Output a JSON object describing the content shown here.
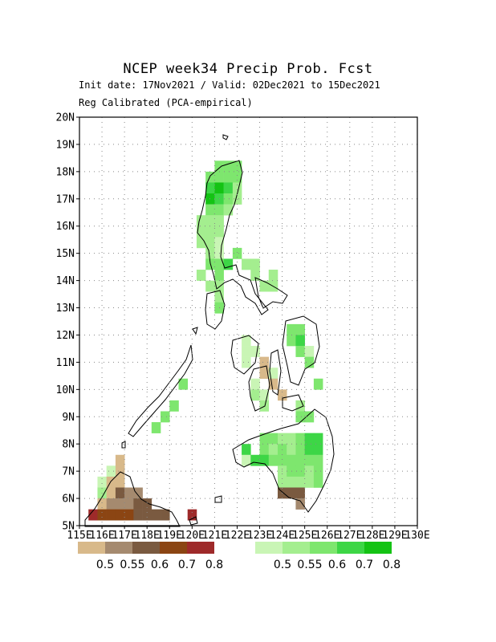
{
  "header": {
    "title": "NCEP  week34  Precip  Prob.  Fcst",
    "subtitle_line1": "Init date: 17Nov2021 / Valid: 02Dec2021 to 15Dec2021",
    "subtitle_line2": "Reg Calibrated (PCA-empirical)"
  },
  "axes": {
    "lat_labels": [
      "5N",
      "6N",
      "7N",
      "8N",
      "9N",
      "10N",
      "11N",
      "12N",
      "13N",
      "14N",
      "15N",
      "16N",
      "17N",
      "18N",
      "19N",
      "20N"
    ],
    "lon_labels": [
      "115E",
      "116E",
      "117E",
      "118E",
      "119E",
      "120E",
      "121E",
      "122E",
      "123E",
      "124E",
      "125E",
      "126E",
      "127E",
      "128E",
      "129E",
      "130E"
    ],
    "lat_range": [
      5,
      20
    ],
    "lon_range": [
      115,
      130
    ],
    "grid": "dotted"
  },
  "legend": {
    "dry": {
      "labels": [
        "0.5",
        "0.55",
        "0.6",
        "0.7",
        "0.8"
      ],
      "colors": [
        "#d8b98a",
        "#a58a6f",
        "#7a5a40",
        "#8b4513",
        "#9e2a2a"
      ]
    },
    "wet": {
      "labels": [
        "0.5",
        "0.55",
        "0.6",
        "0.7",
        "0.8"
      ],
      "colors": [
        "#c9f5b5",
        "#a4ee8f",
        "#7ee66e",
        "#3dd646",
        "#14c314"
      ]
    }
  },
  "chart_data": {
    "type": "heatmap",
    "title": "NCEP  week34  Precip  Prob.  Fcst",
    "cell_size_deg": 0.4,
    "lat_range": [
      5,
      20
    ],
    "lon_range": [
      115,
      130
    ],
    "note_categories": "g1-g5 above-normal probability levels 0.5,0.55,0.6,0.7,0.8; b1-b5 below-normal",
    "cells": [
      {
        "lon": 121.0,
        "lat": 18.0,
        "cat": "g3"
      },
      {
        "lon": 121.4,
        "lat": 18.0,
        "cat": "g3"
      },
      {
        "lon": 121.8,
        "lat": 18.0,
        "cat": "g3"
      },
      {
        "lon": 120.6,
        "lat": 17.6,
        "cat": "g3"
      },
      {
        "lon": 121.0,
        "lat": 17.6,
        "cat": "g3"
      },
      {
        "lon": 121.4,
        "lat": 17.6,
        "cat": "g3"
      },
      {
        "lon": 121.8,
        "lat": 17.6,
        "cat": "g3"
      },
      {
        "lon": 120.6,
        "lat": 17.2,
        "cat": "g4"
      },
      {
        "lon": 121.0,
        "lat": 17.2,
        "cat": "g5"
      },
      {
        "lon": 121.4,
        "lat": 17.2,
        "cat": "g4"
      },
      {
        "lon": 121.8,
        "lat": 17.2,
        "cat": "g2"
      },
      {
        "lon": 120.6,
        "lat": 16.8,
        "cat": "g5"
      },
      {
        "lon": 121.0,
        "lat": 16.8,
        "cat": "g4"
      },
      {
        "lon": 121.4,
        "lat": 16.8,
        "cat": "g3"
      },
      {
        "lon": 121.8,
        "lat": 16.8,
        "cat": "g2"
      },
      {
        "lon": 120.6,
        "lat": 16.4,
        "cat": "g3"
      },
      {
        "lon": 121.0,
        "lat": 16.4,
        "cat": "g3"
      },
      {
        "lon": 121.4,
        "lat": 16.4,
        "cat": "g2"
      },
      {
        "lon": 120.2,
        "lat": 16.0,
        "cat": "g2"
      },
      {
        "lon": 120.6,
        "lat": 16.0,
        "cat": "g2"
      },
      {
        "lon": 121.0,
        "lat": 16.0,
        "cat": "g2"
      },
      {
        "lon": 120.2,
        "lat": 15.6,
        "cat": "g2"
      },
      {
        "lon": 120.6,
        "lat": 15.6,
        "cat": "g2"
      },
      {
        "lon": 121.0,
        "lat": 15.6,
        "cat": "g2"
      },
      {
        "lon": 120.2,
        "lat": 15.2,
        "cat": "g2"
      },
      {
        "lon": 120.6,
        "lat": 15.2,
        "cat": "g2"
      },
      {
        "lon": 121.0,
        "lat": 15.2,
        "cat": "g1"
      },
      {
        "lon": 120.6,
        "lat": 14.8,
        "cat": "g2"
      },
      {
        "lon": 121.0,
        "lat": 14.8,
        "cat": "g1"
      },
      {
        "lon": 121.8,
        "lat": 14.8,
        "cat": "g3"
      },
      {
        "lon": 120.6,
        "lat": 14.4,
        "cat": "g3"
      },
      {
        "lon": 121.0,
        "lat": 14.4,
        "cat": "g3"
      },
      {
        "lon": 121.4,
        "lat": 14.4,
        "cat": "g4"
      },
      {
        "lon": 122.2,
        "lat": 14.4,
        "cat": "g2"
      },
      {
        "lon": 122.6,
        "lat": 14.4,
        "cat": "g2"
      },
      {
        "lon": 120.2,
        "lat": 14.0,
        "cat": "g2"
      },
      {
        "lon": 121.0,
        "lat": 14.0,
        "cat": "g3"
      },
      {
        "lon": 122.6,
        "lat": 14.0,
        "cat": "g2"
      },
      {
        "lon": 123.4,
        "lat": 14.0,
        "cat": "g2"
      },
      {
        "lon": 120.6,
        "lat": 13.6,
        "cat": "g2"
      },
      {
        "lon": 121.0,
        "lat": 13.6,
        "cat": "g2"
      },
      {
        "lon": 123.0,
        "lat": 13.6,
        "cat": "g2"
      },
      {
        "lon": 123.4,
        "lat": 13.6,
        "cat": "g2"
      },
      {
        "lon": 121.0,
        "lat": 13.2,
        "cat": "g2"
      },
      {
        "lon": 121.0,
        "lat": 12.8,
        "cat": "g3"
      },
      {
        "lon": 124.2,
        "lat": 12.0,
        "cat": "g3"
      },
      {
        "lon": 124.6,
        "lat": 12.0,
        "cat": "g3"
      },
      {
        "lon": 124.2,
        "lat": 11.6,
        "cat": "g3"
      },
      {
        "lon": 124.6,
        "lat": 11.6,
        "cat": "g4"
      },
      {
        "lon": 122.2,
        "lat": 11.6,
        "cat": "g1"
      },
      {
        "lon": 122.2,
        "lat": 11.2,
        "cat": "g1"
      },
      {
        "lon": 122.6,
        "lat": 11.2,
        "cat": "g1"
      },
      {
        "lon": 124.6,
        "lat": 11.2,
        "cat": "g3"
      },
      {
        "lon": 125.0,
        "lat": 11.2,
        "cat": "g1"
      },
      {
        "lon": 122.2,
        "lat": 10.8,
        "cat": "g1"
      },
      {
        "lon": 123.0,
        "lat": 10.8,
        "cat": "b1"
      },
      {
        "lon": 125.0,
        "lat": 10.8,
        "cat": "g3"
      },
      {
        "lon": 123.0,
        "lat": 10.4,
        "cat": "b1"
      },
      {
        "lon": 123.4,
        "lat": 10.4,
        "cat": "g1"
      },
      {
        "lon": 123.4,
        "lat": 10.0,
        "cat": "b1"
      },
      {
        "lon": 122.6,
        "lat": 10.0,
        "cat": "g1"
      },
      {
        "lon": 122.6,
        "lat": 9.6,
        "cat": "g2"
      },
      {
        "lon": 123.0,
        "lat": 9.6,
        "cat": "g1"
      },
      {
        "lon": 123.8,
        "lat": 9.6,
        "cat": "b1"
      },
      {
        "lon": 125.4,
        "lat": 10.0,
        "cat": "g3"
      },
      {
        "lon": 123.0,
        "lat": 9.2,
        "cat": "g2"
      },
      {
        "lon": 124.6,
        "lat": 9.2,
        "cat": "g2"
      },
      {
        "lon": 124.6,
        "lat": 8.8,
        "cat": "g3"
      },
      {
        "lon": 125.0,
        "lat": 8.8,
        "cat": "g3"
      },
      {
        "lon": 123.0,
        "lat": 8.0,
        "cat": "g3"
      },
      {
        "lon": 123.4,
        "lat": 8.0,
        "cat": "g3"
      },
      {
        "lon": 123.8,
        "lat": 8.0,
        "cat": "g2"
      },
      {
        "lon": 124.2,
        "lat": 8.0,
        "cat": "g2"
      },
      {
        "lon": 124.6,
        "lat": 8.0,
        "cat": "g3"
      },
      {
        "lon": 125.0,
        "lat": 8.0,
        "cat": "g4"
      },
      {
        "lon": 125.4,
        "lat": 8.0,
        "cat": "g4"
      },
      {
        "lon": 122.2,
        "lat": 7.6,
        "cat": "g4"
      },
      {
        "lon": 123.0,
        "lat": 7.6,
        "cat": "g3"
      },
      {
        "lon": 123.4,
        "lat": 7.6,
        "cat": "g2"
      },
      {
        "lon": 123.8,
        "lat": 7.6,
        "cat": "g3"
      },
      {
        "lon": 124.2,
        "lat": 7.6,
        "cat": "g2"
      },
      {
        "lon": 124.6,
        "lat": 7.6,
        "cat": "g3"
      },
      {
        "lon": 125.0,
        "lat": 7.6,
        "cat": "g4"
      },
      {
        "lon": 125.4,
        "lat": 7.6,
        "cat": "g4"
      },
      {
        "lon": 122.2,
        "lat": 7.2,
        "cat": "g1"
      },
      {
        "lon": 122.6,
        "lat": 7.2,
        "cat": "g4"
      },
      {
        "lon": 123.0,
        "lat": 7.2,
        "cat": "g4"
      },
      {
        "lon": 123.4,
        "lat": 7.2,
        "cat": "g3"
      },
      {
        "lon": 123.8,
        "lat": 7.2,
        "cat": "g3"
      },
      {
        "lon": 124.2,
        "lat": 7.2,
        "cat": "g3"
      },
      {
        "lon": 124.6,
        "lat": 7.2,
        "cat": "g3"
      },
      {
        "lon": 125.0,
        "lat": 7.2,
        "cat": "g3"
      },
      {
        "lon": 125.4,
        "lat": 7.2,
        "cat": "g3"
      },
      {
        "lon": 123.8,
        "lat": 6.8,
        "cat": "g2"
      },
      {
        "lon": 124.2,
        "lat": 6.8,
        "cat": "g3"
      },
      {
        "lon": 124.6,
        "lat": 6.8,
        "cat": "g3"
      },
      {
        "lon": 125.0,
        "lat": 6.8,
        "cat": "g2"
      },
      {
        "lon": 125.4,
        "lat": 6.8,
        "cat": "g3"
      },
      {
        "lon": 123.8,
        "lat": 6.4,
        "cat": "g2"
      },
      {
        "lon": 124.2,
        "lat": 6.4,
        "cat": "g2"
      },
      {
        "lon": 124.6,
        "lat": 6.4,
        "cat": "g2"
      },
      {
        "lon": 125.0,
        "lat": 6.4,
        "cat": "g2"
      },
      {
        "lon": 125.4,
        "lat": 6.4,
        "cat": "g3"
      },
      {
        "lon": 123.8,
        "lat": 6.0,
        "cat": "b3"
      },
      {
        "lon": 124.2,
        "lat": 6.0,
        "cat": "b3"
      },
      {
        "lon": 124.6,
        "lat": 6.0,
        "cat": "b3"
      },
      {
        "lon": 124.6,
        "lat": 5.6,
        "cat": "b2"
      },
      {
        "lon": 119.0,
        "lat": 9.2,
        "cat": "g3"
      },
      {
        "lon": 118.6,
        "lat": 8.8,
        "cat": "g3"
      },
      {
        "lon": 118.2,
        "lat": 8.4,
        "cat": "g3"
      },
      {
        "lon": 119.4,
        "lat": 10.0,
        "cat": "g3"
      },
      {
        "lon": 116.6,
        "lat": 7.2,
        "cat": "b1"
      },
      {
        "lon": 116.2,
        "lat": 6.8,
        "cat": "g1"
      },
      {
        "lon": 116.6,
        "lat": 6.8,
        "cat": "b1"
      },
      {
        "lon": 115.8,
        "lat": 6.4,
        "cat": "g1"
      },
      {
        "lon": 116.2,
        "lat": 6.4,
        "cat": "b1"
      },
      {
        "lon": 116.6,
        "lat": 6.4,
        "cat": "b1"
      },
      {
        "lon": 115.8,
        "lat": 6.0,
        "cat": "g2"
      },
      {
        "lon": 116.2,
        "lat": 6.0,
        "cat": "b1"
      },
      {
        "lon": 116.6,
        "lat": 6.0,
        "cat": "b3"
      },
      {
        "lon": 117.0,
        "lat": 6.0,
        "cat": "b2"
      },
      {
        "lon": 117.4,
        "lat": 6.0,
        "cat": "b2"
      },
      {
        "lon": 115.8,
        "lat": 5.6,
        "cat": "b1"
      },
      {
        "lon": 116.2,
        "lat": 5.6,
        "cat": "b2"
      },
      {
        "lon": 116.6,
        "lat": 5.6,
        "cat": "b2"
      },
      {
        "lon": 117.0,
        "lat": 5.6,
        "cat": "b2"
      },
      {
        "lon": 117.4,
        "lat": 5.6,
        "cat": "b3"
      },
      {
        "lon": 117.8,
        "lat": 5.6,
        "cat": "b3"
      },
      {
        "lon": 115.4,
        "lat": 5.2,
        "cat": "b5"
      },
      {
        "lon": 115.8,
        "lat": 5.2,
        "cat": "b4"
      },
      {
        "lon": 116.2,
        "lat": 5.2,
        "cat": "b4"
      },
      {
        "lon": 116.6,
        "lat": 5.2,
        "cat": "b4"
      },
      {
        "lon": 117.0,
        "lat": 5.2,
        "cat": "b4"
      },
      {
        "lon": 117.4,
        "lat": 5.2,
        "cat": "b3"
      },
      {
        "lon": 117.8,
        "lat": 5.2,
        "cat": "b3"
      },
      {
        "lon": 118.2,
        "lat": 5.2,
        "cat": "b3"
      },
      {
        "lon": 118.6,
        "lat": 5.2,
        "cat": "b3"
      },
      {
        "lon": 119.8,
        "lat": 5.2,
        "cat": "b5"
      }
    ]
  }
}
